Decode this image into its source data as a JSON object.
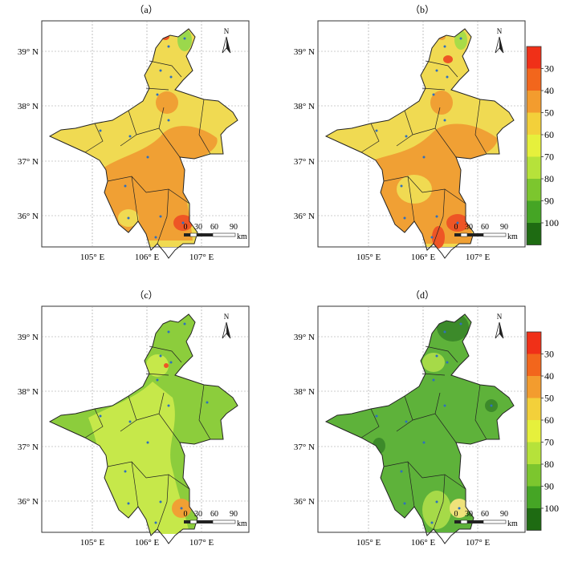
{
  "panels": [
    {
      "label": "（a）",
      "scheme": "a"
    },
    {
      "label": "（b）",
      "scheme": "b"
    },
    {
      "label": "（c）",
      "scheme": "c"
    },
    {
      "label": "（d）",
      "scheme": "d"
    }
  ],
  "lat_ticks": [
    "39° N",
    "38° N",
    "37° N",
    "36° N"
  ],
  "lon_ticks": [
    "105° E",
    "106° E",
    "107° E"
  ],
  "north_label": "N",
  "scalebar": {
    "numbers": [
      "0",
      "30",
      "60",
      "90"
    ],
    "unit": "km"
  },
  "legend": {
    "values": [
      "30",
      "40",
      "50",
      "60",
      "70",
      "80",
      "90",
      "100"
    ],
    "colors": [
      "#f03018",
      "#f2661c",
      "#f39c2e",
      "#f3d03a",
      "#e6f03c",
      "#b6e23a",
      "#7cc62e",
      "#45a525",
      "#1e6b12"
    ]
  },
  "colors": {
    "a_base": "#f0da52",
    "a_orange": "#f0a034",
    "a_red": "#ee5525",
    "a_green": "#9bd84c",
    "b_base": "#f0da52",
    "b_orange": "#f0a034",
    "b_red": "#ee5525",
    "b_green": "#a8dc48",
    "c_base": "#8ccd3c",
    "c_light": "#c6e84a",
    "c_orange": "#f0a034",
    "c_red": "#ee5525",
    "d_base": "#5eb23a",
    "d_dark": "#3c8a2a",
    "d_light": "#a6da48",
    "d_yellow": "#eee27a",
    "border": "#222222",
    "dot": "#2f6fbf"
  }
}
